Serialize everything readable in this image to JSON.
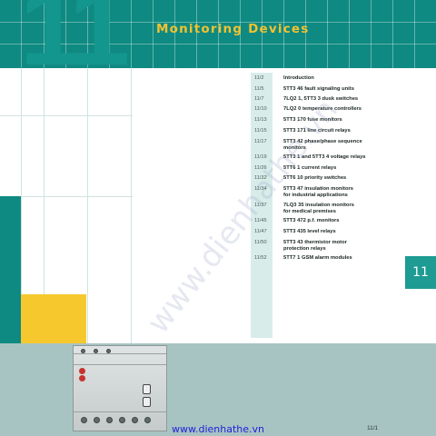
{
  "header": {
    "chapter_number": "11",
    "title": "Monitoring Devices"
  },
  "toc": [
    {
      "page": "11/2",
      "text": "Introduction"
    },
    {
      "page": "11/5",
      "text": "5TT3 46 fault signaling units"
    },
    {
      "page": "11/7",
      "text": "7LQ2 1, 5TT3 3 dusk switches"
    },
    {
      "page": "11/10",
      "text": "7LQ2 0 temperature controllers"
    },
    {
      "page": "11/13",
      "text": "5TT3 170 fuse monitors"
    },
    {
      "page": "11/15",
      "text": "5TT3 171 line circuit relays"
    },
    {
      "page": "11/17",
      "text": "5TT3 42 phase/phase sequence\nmonitors"
    },
    {
      "page": "11/19",
      "text": "5TT3 1 and 5TT3 4 voltage relays"
    },
    {
      "page": "11/26",
      "text": "5TT6 1 current relays"
    },
    {
      "page": "11/32",
      "text": "5TT6 10 priority switches"
    },
    {
      "page": "11/34",
      "text": "5TT3 47 insulation monitors\nfor industrial applications"
    },
    {
      "page": "11/37",
      "text": "7LQ3 35 insulation monitors\nfor medical premises"
    },
    {
      "page": "11/45",
      "text": "5TT3 472 p.f. monitors"
    },
    {
      "page": "11/47",
      "text": "5TT3 435 level relays"
    },
    {
      "page": "11/50",
      "text": "5TT3 43 thermistor motor\nprotection relays"
    },
    {
      "page": "11/52",
      "text": "5TT7 1 GSM alarm modules"
    }
  ],
  "side_tab": "11",
  "watermark": "www.dienhathe.vn",
  "footer": {
    "url": "www.dienhathe.vn",
    "page_number": "11/1"
  },
  "colors": {
    "teal": "#0e8a82",
    "yellow": "#f7c82e",
    "title": "#f2c230",
    "grey_band": "#a7c4c2"
  }
}
